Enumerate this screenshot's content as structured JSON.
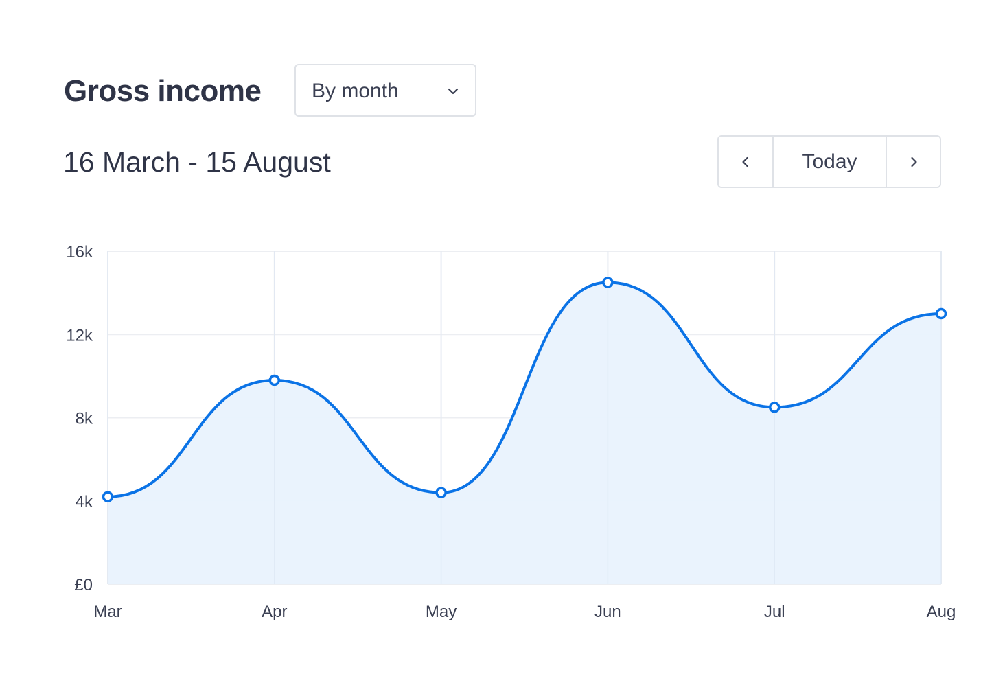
{
  "header": {
    "title": "Gross income",
    "period_select": {
      "value": "By month",
      "icon": "chevron-down-icon"
    },
    "date_range": "16 March - 15 August",
    "nav": {
      "prev_icon": "chevron-left-icon",
      "today_label": "Today",
      "next_icon": "chevron-right-icon"
    }
  },
  "colors": {
    "line": "#0b73e6",
    "area": "#e9f2fd",
    "grid": "#eceef2",
    "text": "#2f3447"
  },
  "chart_data": {
    "type": "area",
    "title": "Gross income",
    "categories": [
      "Mar",
      "Apr",
      "May",
      "Jun",
      "Jul",
      "Aug"
    ],
    "series": [
      {
        "values": [
          4200,
          9800,
          4400,
          14500,
          8500,
          13000
        ]
      }
    ],
    "ylim": [
      0,
      16000
    ],
    "yticks": [
      0,
      4000,
      8000,
      12000,
      16000
    ],
    "ytick_labels": [
      "£0",
      "4k",
      "8k",
      "12k",
      "16k"
    ],
    "grid": true,
    "smooth": true,
    "markers": true
  }
}
